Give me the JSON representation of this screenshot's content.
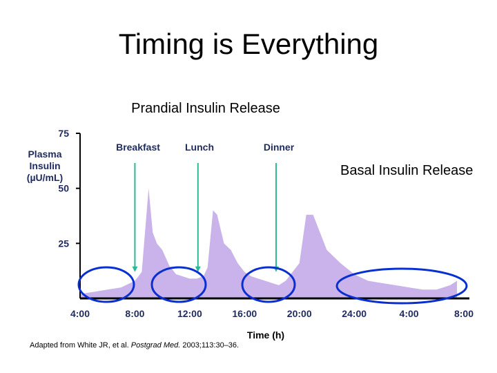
{
  "slide": {
    "title": "Timing is Everything",
    "prandial_label": "Prandial Insulin Release",
    "basal_label": "Basal Insulin Release",
    "source_text": "Adapted from White JR, et al. ",
    "source_journal": "Postgrad Med.",
    "source_rest": " 2003;113:30–36."
  },
  "chart_data": {
    "type": "area",
    "ylabel": "Plasma Insulin (µU/mL)",
    "xlabel": "Time (h)",
    "ylim": [
      0,
      75
    ],
    "yticks": [
      25,
      50,
      75
    ],
    "x_ticks": [
      "4:00",
      "8:00",
      "12:00",
      "16:00",
      "20:00",
      "24:00",
      "4:00",
      "8:00"
    ],
    "x_range_hours": [
      0,
      28
    ],
    "fill_color": "#c9b3ea",
    "arrow_color": "#2bb894",
    "circle_color": "#0a2fd0",
    "series": [
      {
        "x": [
          0,
          1,
          2,
          3,
          4,
          4.5,
          5,
          5.3,
          5.6,
          6,
          6.5,
          7,
          8,
          8.5,
          9,
          9.3,
          9.7,
          10,
          10.5,
          11,
          11.5,
          12,
          12.5,
          13,
          14,
          14.5,
          15,
          15.5,
          16,
          16.5,
          17,
          17.5,
          18,
          19,
          20,
          21,
          22,
          23,
          24,
          25,
          26,
          26.5,
          27,
          27.5
        ],
        "y": [
          2,
          3,
          4,
          5,
          8,
          12,
          50,
          30,
          25,
          22,
          15,
          11,
          9,
          9,
          10,
          14,
          40,
          38,
          25,
          22,
          16,
          12,
          10,
          9,
          7,
          6,
          8,
          12,
          16,
          38,
          38,
          30,
          22,
          16,
          11,
          8,
          7,
          6,
          5,
          4,
          4,
          5,
          6,
          8
        ]
      }
    ],
    "meals": [
      {
        "label": "Breakfast",
        "x": 4,
        "y": 12
      },
      {
        "label": "Lunch",
        "x": 8.6,
        "y": 12
      },
      {
        "label": "Dinner",
        "x": 14.3,
        "y": 12
      }
    ]
  }
}
